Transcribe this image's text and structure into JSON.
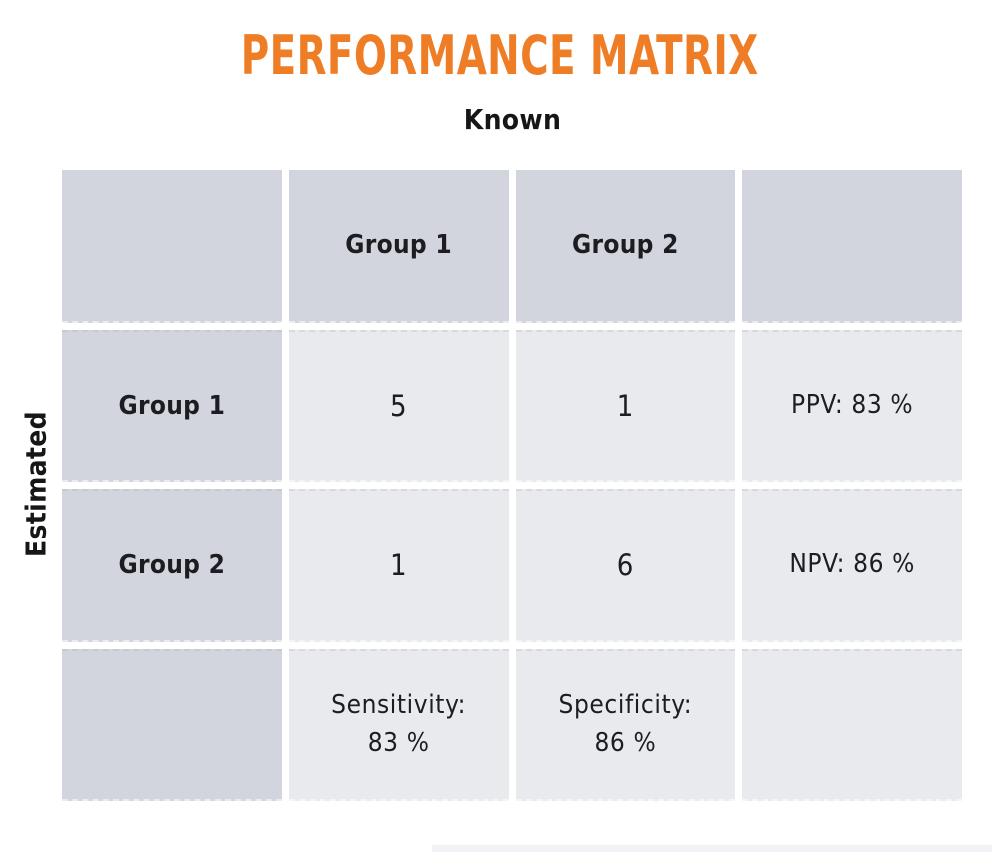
{
  "title": "PERFORMANCE MATRIX",
  "axes": {
    "known": "Known",
    "estimated": "Estimated"
  },
  "colors": {
    "accent_orange": "#ef7d26",
    "header_cell": "#d3d5de",
    "data_cell": "#e9eaee"
  },
  "matrix": {
    "col_headers": [
      "Group 1",
      "Group 2"
    ],
    "row_headers": [
      "Group 1",
      "Group 2"
    ],
    "cells": {
      "r0c0": "5",
      "r0c1": "1",
      "r1c0": "1",
      "r1c1": "6"
    },
    "metrics": {
      "ppv": "PPV: 83 %",
      "npv": "NPV: 86 %",
      "sensitivity_label": "Sensitivity:",
      "sensitivity_value": "83 %",
      "specificity_label": "Specificity:",
      "specificity_value": "86 %"
    }
  },
  "chart_data": {
    "type": "table",
    "title": "PERFORMANCE MATRIX",
    "x_axis_label": "Known",
    "y_axis_label": "Estimated",
    "categories": [
      "Group 1",
      "Group 2"
    ],
    "matrix_rows_estimated_by_cols_known": [
      [
        5,
        1
      ],
      [
        1,
        6
      ]
    ],
    "metrics": {
      "PPV": 83,
      "NPV": 86,
      "Sensitivity": 83,
      "Specificity": 86
    },
    "metric_unit": "%"
  }
}
